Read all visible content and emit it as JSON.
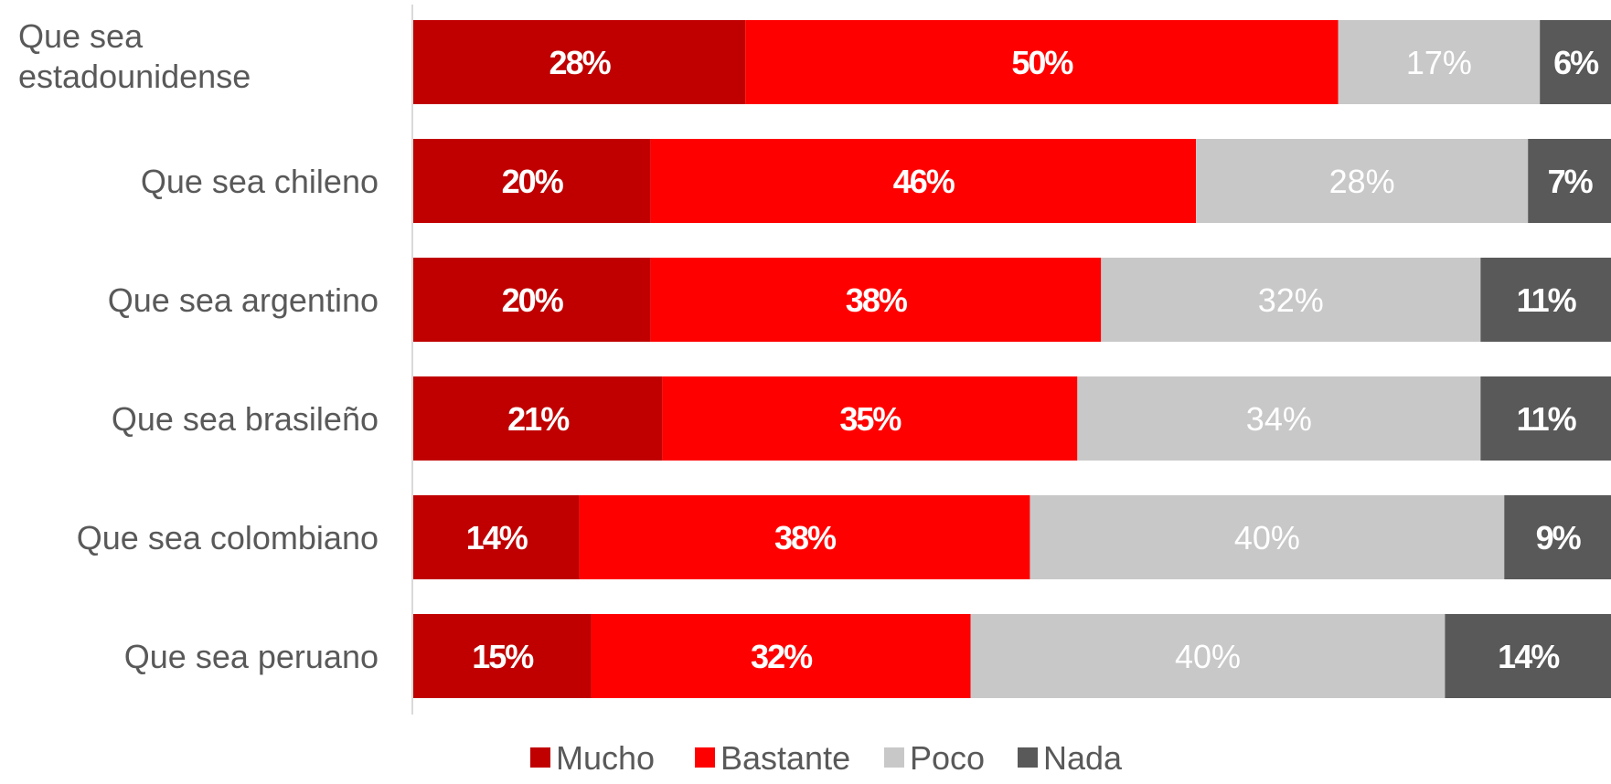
{
  "chart_data": {
    "type": "bar",
    "orientation": "horizontal",
    "stacked": true,
    "percent_stacked": true,
    "categories": [
      "Que sea estadounidense",
      "Que sea chileno",
      "Que sea argentino",
      "Que sea brasileño",
      "Que sea colombiano",
      "Que sea peruano"
    ],
    "series": [
      {
        "name": "Mucho",
        "color": "#C00000",
        "values": [
          28,
          20,
          20,
          21,
          14,
          15
        ],
        "labels": [
          "28%",
          "20%",
          "20%",
          "21%",
          "14%",
          "15%"
        ]
      },
      {
        "name": "Bastante",
        "color": "#FF0000",
        "values": [
          50,
          46,
          38,
          35,
          38,
          32
        ],
        "labels": [
          "50%",
          "46%",
          "38%",
          "35%",
          "38%",
          "32%"
        ]
      },
      {
        "name": "Poco",
        "color": "#C8C8C8",
        "values": [
          17,
          28,
          32,
          34,
          40,
          40
        ],
        "labels": [
          "17%",
          "28%",
          "32%",
          "34%",
          "40%",
          "40%"
        ]
      },
      {
        "name": "Nada",
        "color": "#595959",
        "values": [
          6,
          7,
          11,
          11,
          9,
          14
        ],
        "labels": [
          "6%",
          "7%",
          "11%",
          "11%",
          "9%",
          "14%"
        ]
      }
    ],
    "legend_position": "bottom",
    "grid": false
  }
}
